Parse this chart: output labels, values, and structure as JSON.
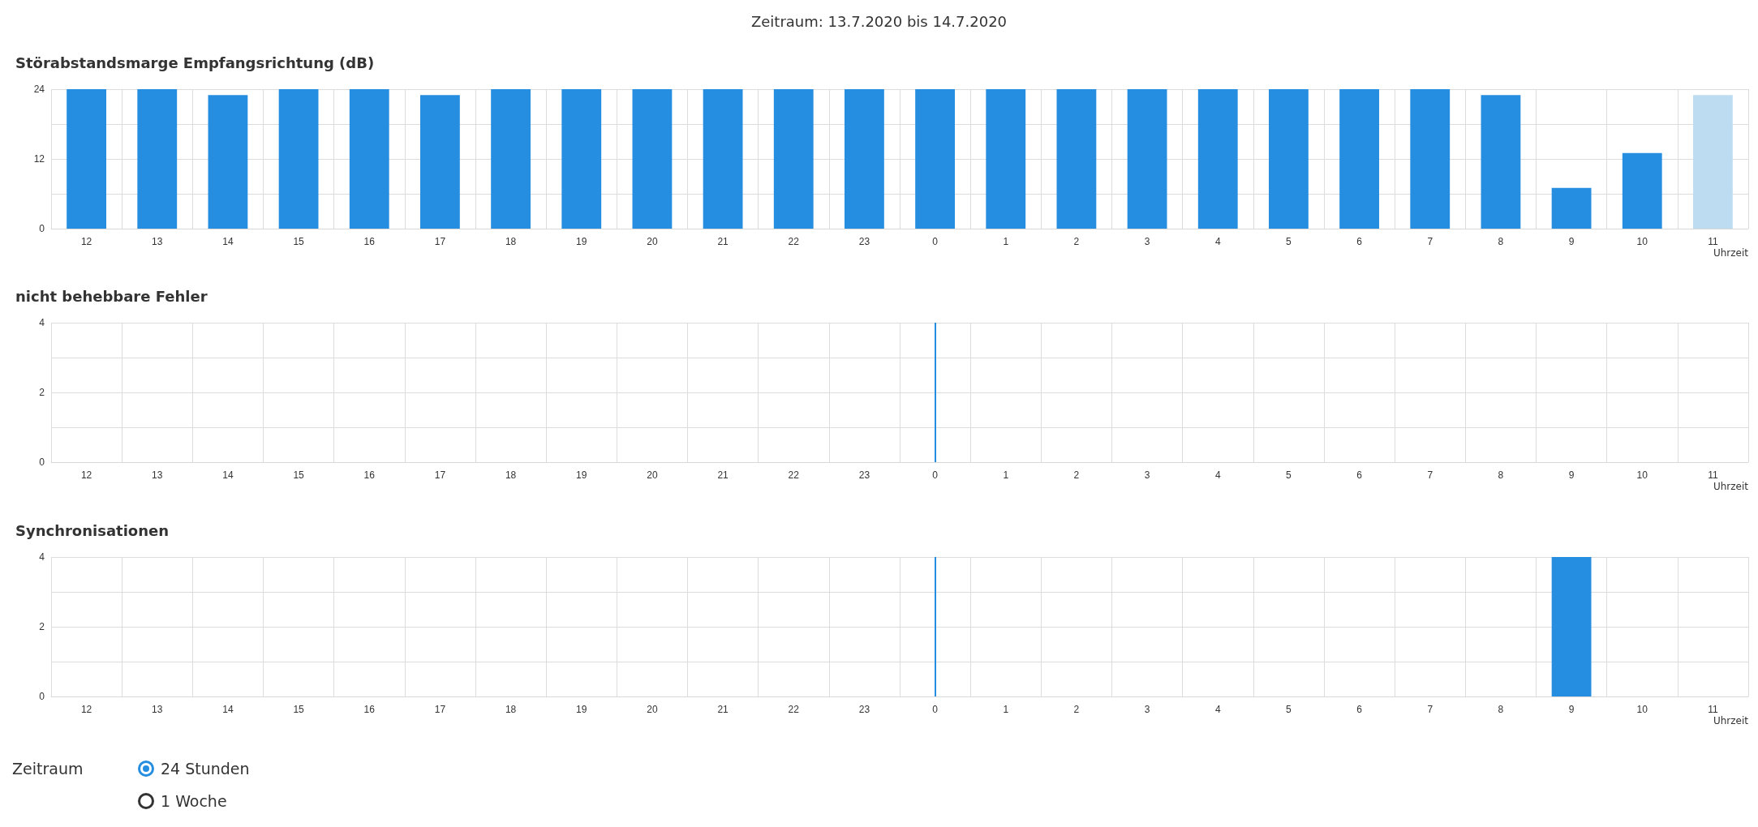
{
  "chart_data": [
    {
      "type": "other",
      "title": "Zeitraum: 13.7.2020 bis 14.7.2020"
    },
    {
      "type": "bar",
      "title": "Störabstandsmarge Empfangsrichtung (dB)",
      "xlabel": "Uhrzeit",
      "categories": [
        "12",
        "13",
        "14",
        "15",
        "16",
        "17",
        "18",
        "19",
        "20",
        "21",
        "22",
        "23",
        "0",
        "1",
        "2",
        "3",
        "4",
        "5",
        "6",
        "7",
        "8",
        "9",
        "10",
        "11"
      ],
      "values": [
        24,
        24,
        23,
        24,
        24,
        23,
        24,
        24,
        24,
        24,
        24,
        24,
        24,
        24,
        24,
        24,
        24,
        24,
        24,
        24,
        23,
        7,
        13,
        23
      ],
      "colors": [
        "#268ee0",
        "#268ee0",
        "#268ee0",
        "#268ee0",
        "#268ee0",
        "#268ee0",
        "#268ee0",
        "#268ee0",
        "#268ee0",
        "#268ee0",
        "#268ee0",
        "#268ee0",
        "#268ee0",
        "#268ee0",
        "#268ee0",
        "#268ee0",
        "#268ee0",
        "#268ee0",
        "#268ee0",
        "#268ee0",
        "#268ee0",
        "#268ee0",
        "#268ee0",
        "#bddcf2"
      ],
      "ylim": [
        0,
        24
      ],
      "yticks": [
        0,
        {
          "value": 6,
          "label": null
        },
        12,
        {
          "value": 18,
          "label": null
        },
        24
      ],
      "grid": true
    },
    {
      "type": "bar",
      "title": "nicht behebbare Fehler",
      "xlabel": "Uhrzeit",
      "categories": [
        "12",
        "13",
        "14",
        "15",
        "16",
        "17",
        "18",
        "19",
        "20",
        "21",
        "22",
        "23",
        "0",
        "1",
        "2",
        "3",
        "4",
        "5",
        "6",
        "7",
        "8",
        "9",
        "10",
        "11"
      ],
      "values": [
        0,
        0,
        0,
        0,
        0,
        0,
        0,
        0,
        0,
        0,
        0,
        0,
        0,
        0,
        0,
        0,
        0,
        0,
        0,
        0,
        0,
        0,
        0,
        0
      ],
      "color": "#268ee0",
      "ylim": [
        0,
        4
      ],
      "yticks": [
        0,
        {
          "value": 1,
          "label": null
        },
        2,
        {
          "value": 3,
          "label": null
        },
        4
      ],
      "grid": true,
      "ref_lines": [
        {
          "axis": "x",
          "value": "0",
          "color": "#268ee0"
        }
      ]
    },
    {
      "type": "bar",
      "title": "Synchronisationen",
      "xlabel": "Uhrzeit",
      "categories": [
        "12",
        "13",
        "14",
        "15",
        "16",
        "17",
        "18",
        "19",
        "20",
        "21",
        "22",
        "23",
        "0",
        "1",
        "2",
        "3",
        "4",
        "5",
        "6",
        "7",
        "8",
        "9",
        "10",
        "11"
      ],
      "values": [
        0,
        0,
        0,
        0,
        0,
        0,
        0,
        0,
        0,
        0,
        0,
        0,
        0,
        0,
        0,
        0,
        0,
        0,
        0,
        0,
        0,
        4,
        0,
        0
      ],
      "color": "#268ee0",
      "ylim": [
        0,
        4
      ],
      "yticks": [
        0,
        {
          "value": 1,
          "label": null
        },
        2,
        {
          "value": 3,
          "label": null
        },
        4
      ],
      "grid": true,
      "ref_lines": [
        {
          "axis": "x",
          "value": "0",
          "color": "#268ee0"
        }
      ]
    },
    {
      "type": "other",
      "annotations": [
        "Zeitraum",
        "24 Stunden",
        "1 Woche"
      ]
    }
  ]
}
